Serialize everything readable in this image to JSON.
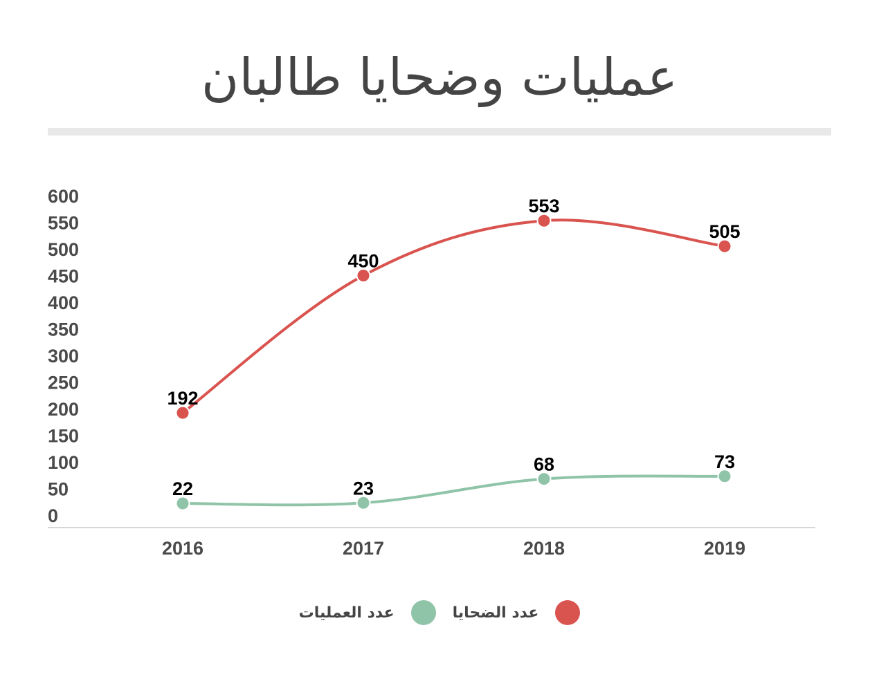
{
  "title": "عمليات وضحايا طالبان",
  "chart_data": {
    "type": "line",
    "categories": [
      "2016",
      "2017",
      "2018",
      "2019"
    ],
    "series": [
      {
        "name": "عدد الضحايا",
        "color": "#d9534f",
        "values": [
          192,
          450,
          553,
          505
        ]
      },
      {
        "name": "عدد العمليات",
        "color": "#8fc4a8",
        "values": [
          22,
          23,
          68,
          73
        ]
      }
    ],
    "yticks": [
      0,
      50,
      100,
      150,
      200,
      250,
      300,
      350,
      400,
      450,
      500,
      550,
      600
    ],
    "ylim": [
      0,
      600
    ],
    "grid": false,
    "legend_position": "bottom-center",
    "smooth": true,
    "data_labels": true
  }
}
